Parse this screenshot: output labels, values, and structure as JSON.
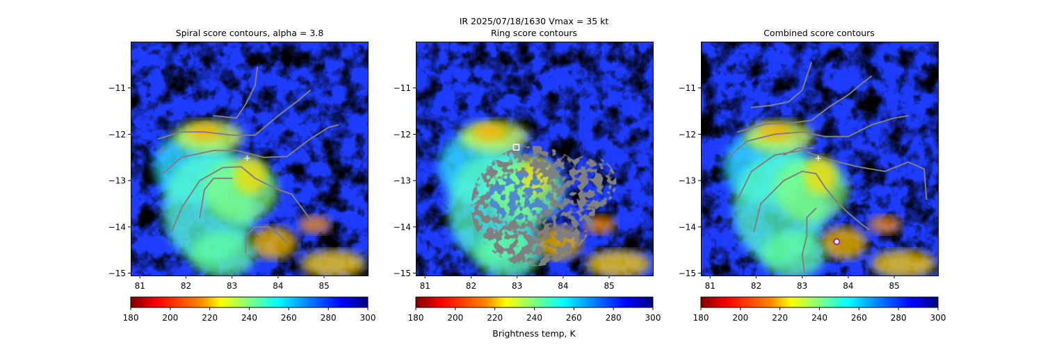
{
  "suptitle_line1": "IR  2025/07/18/1630    Vmax = 35 kt",
  "colorbar_label": "Brightness temp, K",
  "colormap": [
    "#800000",
    "#ff0000",
    "#ff8000",
    "#ffff00",
    "#80ff80",
    "#00ffff",
    "#0080ff",
    "#0000ff",
    "#000080"
  ],
  "contour_color": "#808080",
  "chart_data": [
    {
      "type": "heatmap",
      "title": "Spiral score contours, alpha =  3.8",
      "xticks": [
        "81",
        "82",
        "83",
        "84",
        "85"
      ],
      "xtick_values": [
        81,
        82,
        83,
        84,
        85
      ],
      "yticks": [
        "−11",
        "−12",
        "−13",
        "−14",
        "−15"
      ],
      "ytick_values": [
        -11,
        -12,
        -13,
        -14,
        -15
      ],
      "xlim": [
        80.8,
        85.95
      ],
      "ylim": [
        -15.05,
        -10.0
      ],
      "colorbar": {
        "ticks": [
          "180",
          "200",
          "220",
          "240",
          "260",
          "280",
          "300"
        ],
        "tick_values": [
          180,
          200,
          220,
          240,
          260,
          280,
          300
        ],
        "range": [
          180,
          300
        ]
      },
      "markers": [
        {
          "shape": "plus",
          "lon": 83.33,
          "lat": -12.52,
          "color": "#ffffff"
        }
      ],
      "contours": [
        [
          [
            82.6,
            -11.6
          ],
          [
            83.1,
            -11.65
          ],
          [
            83.3,
            -11.35
          ],
          [
            83.5,
            -10.95
          ],
          [
            83.55,
            -10.55
          ]
        ],
        [
          [
            81.4,
            -12.1
          ],
          [
            81.9,
            -11.95
          ],
          [
            82.4,
            -11.95
          ],
          [
            83.0,
            -12.02
          ],
          [
            83.5,
            -12.02
          ],
          [
            84.0,
            -11.6
          ],
          [
            84.4,
            -11.3
          ],
          [
            84.7,
            -11.05
          ]
        ],
        [
          [
            81.5,
            -12.85
          ],
          [
            81.9,
            -12.5
          ],
          [
            82.6,
            -12.35
          ],
          [
            83.1,
            -12.35
          ],
          [
            83.7,
            -12.5
          ],
          [
            84.2,
            -12.48
          ],
          [
            84.7,
            -12.1
          ],
          [
            85.1,
            -11.85
          ],
          [
            85.3,
            -11.8
          ]
        ],
        [
          [
            81.4,
            -12.4
          ],
          [
            81.6,
            -12.3
          ]
        ],
        [
          [
            81.7,
            -14.08
          ],
          [
            81.9,
            -13.6
          ],
          [
            82.3,
            -13.0
          ],
          [
            82.8,
            -12.72
          ],
          [
            83.2,
            -12.7
          ],
          [
            83.5,
            -12.95
          ],
          [
            83.9,
            -13.15
          ],
          [
            84.3,
            -13.3
          ],
          [
            84.6,
            -13.7
          ],
          [
            84.75,
            -13.9
          ]
        ],
        [
          [
            82.3,
            -13.8
          ],
          [
            82.4,
            -13.2
          ],
          [
            82.6,
            -12.95
          ],
          [
            83.0,
            -12.95
          ]
        ],
        [
          [
            83.3,
            -14.55
          ],
          [
            83.3,
            -14.2
          ],
          [
            83.5,
            -14.0
          ],
          [
            83.8,
            -14.0
          ],
          [
            84.0,
            -14.15
          ],
          [
            84.2,
            -14.35
          ]
        ]
      ]
    },
    {
      "type": "heatmap",
      "title": "Ring score contours",
      "xticks": [
        "81",
        "82",
        "83",
        "84",
        "85"
      ],
      "xtick_values": [
        81,
        82,
        83,
        84,
        85
      ],
      "yticks": [
        "−11",
        "−12",
        "−13",
        "−14",
        "−15"
      ],
      "ytick_values": [
        -11,
        -12,
        -13,
        -14,
        -15
      ],
      "xlim": [
        80.8,
        85.95
      ],
      "ylim": [
        -15.05,
        -10.0
      ],
      "colorbar": {
        "ticks": [
          "180",
          "200",
          "220",
          "240",
          "260",
          "280",
          "300"
        ],
        "tick_values": [
          180,
          200,
          220,
          240,
          260,
          280,
          300
        ],
        "range": [
          180,
          300
        ]
      },
      "markers": [
        {
          "shape": "square",
          "lon": 82.98,
          "lat": -12.28,
          "color": "#ffffff"
        }
      ],
      "ring_region": {
        "center_lon": 83.35,
        "center_lat": -13.55,
        "radius_lon": 1.35,
        "radius_lat": 1.3,
        "tail_lon": 84.55,
        "tail_lat": -13.05
      },
      "contours": []
    },
    {
      "type": "heatmap",
      "title": "Combined score contours",
      "xticks": [
        "81",
        "82",
        "83",
        "84",
        "85"
      ],
      "xtick_values": [
        81,
        82,
        83,
        84,
        85
      ],
      "yticks": [
        "−11",
        "−12",
        "−13",
        "−14",
        "−15"
      ],
      "ytick_values": [
        -11,
        -12,
        -13,
        -14,
        -15
      ],
      "xlim": [
        80.8,
        85.95
      ],
      "ylim": [
        -15.05,
        -10.0
      ],
      "colorbar": {
        "ticks": [
          "180",
          "200",
          "220",
          "240",
          "260",
          "280",
          "300"
        ],
        "tick_values": [
          180,
          200,
          220,
          240,
          260,
          280,
          300
        ],
        "range": [
          180,
          300
        ]
      },
      "markers": [
        {
          "shape": "plus",
          "lon": 83.35,
          "lat": -12.52,
          "color": "#ffffff"
        },
        {
          "shape": "circle",
          "lon": 83.75,
          "lat": -14.32,
          "color": "#a020c0"
        }
      ],
      "contours": [
        [
          [
            81.9,
            -11.42
          ],
          [
            82.3,
            -11.38
          ],
          [
            82.7,
            -11.3
          ],
          [
            83.0,
            -11.05
          ],
          [
            83.1,
            -10.75
          ],
          [
            83.2,
            -10.45
          ]
        ],
        [
          [
            81.6,
            -11.95
          ],
          [
            82.2,
            -11.78
          ],
          [
            82.8,
            -11.75
          ],
          [
            83.2,
            -11.7
          ],
          [
            83.6,
            -11.4
          ],
          [
            84.0,
            -11.15
          ],
          [
            84.3,
            -10.9
          ],
          [
            84.5,
            -10.75
          ]
        ],
        [
          [
            81.4,
            -12.5
          ],
          [
            81.8,
            -12.15
          ],
          [
            82.4,
            -12.0
          ],
          [
            83.0,
            -11.95
          ],
          [
            83.5,
            -12.05
          ],
          [
            84.0,
            -12.05
          ],
          [
            84.5,
            -11.8
          ],
          [
            85.0,
            -11.65
          ],
          [
            85.3,
            -11.6
          ]
        ],
        [
          [
            81.6,
            -13.4
          ],
          [
            81.9,
            -12.8
          ],
          [
            82.4,
            -12.45
          ],
          [
            83.0,
            -12.35
          ],
          [
            83.6,
            -12.55
          ],
          [
            84.2,
            -12.7
          ],
          [
            84.8,
            -12.8
          ],
          [
            85.3,
            -12.6
          ],
          [
            85.65,
            -12.75
          ],
          [
            85.7,
            -13.4
          ]
        ],
        [
          [
            81.95,
            -14.1
          ],
          [
            82.1,
            -13.5
          ],
          [
            82.6,
            -13.0
          ],
          [
            83.0,
            -12.8
          ],
          [
            83.3,
            -12.85
          ],
          [
            83.5,
            -13.15
          ],
          [
            83.7,
            -13.4
          ],
          [
            84.0,
            -13.7
          ],
          [
            84.3,
            -13.95
          ],
          [
            84.45,
            -14.05
          ]
        ],
        [
          [
            82.6,
            -12.45
          ],
          [
            82.9,
            -12.3
          ],
          [
            83.25,
            -12.3
          ]
        ],
        [
          [
            83.05,
            -15.0
          ],
          [
            83.0,
            -14.6
          ],
          [
            83.1,
            -14.2
          ],
          [
            83.1,
            -13.8
          ],
          [
            83.3,
            -13.6
          ]
        ]
      ]
    }
  ]
}
